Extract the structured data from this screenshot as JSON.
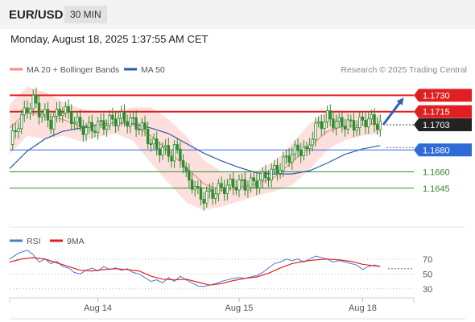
{
  "header": {
    "symbol": "EUR/USD",
    "interval": "30 MIN",
    "datetime": "Monday, August 18, 2025 1:37:55 AM CET"
  },
  "legend": {
    "bollinger_label": "MA 20 + Bollinger Bands",
    "ma50_label": "MA 50",
    "credit": "Research © 2025 Trading Central",
    "rsi_label": "RSI",
    "rsi_ma_label": "9MA"
  },
  "colors": {
    "bollinger": "#f28c8c",
    "band_fill": "#fde0de",
    "ma50": "#2f5ca8",
    "resistance": "#e02020",
    "current": "#222222",
    "support_blue": "#2f6bd6",
    "support_green": "#2e8b2e",
    "arrow": "#2f63b0",
    "candle": "#2e8b2e",
    "rsi": "#4a78d6",
    "rsi_ma": "#e02020"
  },
  "chart_data": [
    {
      "type": "candlestick",
      "title": "EUR/USD 30 MIN",
      "ylim": [
        1.1622,
        1.1745
      ],
      "x_ticks": [
        "Aug 14",
        "Aug 15",
        "Aug 18"
      ],
      "levels": [
        {
          "value": 1.173,
          "label": "1.1730",
          "kind": "resistance"
        },
        {
          "value": 1.1715,
          "label": "1.1715",
          "kind": "resistance"
        },
        {
          "value": 1.1703,
          "label": "1.1703",
          "kind": "current"
        },
        {
          "value": 1.168,
          "label": "1.1680",
          "kind": "support-blue"
        },
        {
          "value": 1.166,
          "label": "1.1660",
          "kind": "support-green"
        },
        {
          "value": 1.1645,
          "label": "1.1645",
          "kind": "support-green"
        }
      ],
      "close_path": [
        [
          0,
          1.1685
        ],
        [
          3,
          1.1705
        ],
        [
          6,
          1.1718
        ],
        [
          8,
          1.1725
        ],
        [
          10,
          1.1716
        ],
        [
          12,
          1.1711
        ],
        [
          14,
          1.1705
        ],
        [
          16,
          1.1712
        ],
        [
          18,
          1.1718
        ],
        [
          20,
          1.1712
        ],
        [
          22,
          1.1707
        ],
        [
          24,
          1.1701
        ],
        [
          26,
          1.1699
        ],
        [
          28,
          1.17
        ],
        [
          30,
          1.1702
        ],
        [
          32,
          1.1704
        ],
        [
          34,
          1.1706
        ],
        [
          36,
          1.1708
        ],
        [
          38,
          1.1709
        ],
        [
          40,
          1.1707
        ],
        [
          42,
          1.1705
        ],
        [
          44,
          1.1702
        ],
        [
          46,
          1.1697
        ],
        [
          48,
          1.1686
        ],
        [
          50,
          1.1682
        ],
        [
          52,
          1.168
        ],
        [
          54,
          1.1678
        ],
        [
          55,
          1.1674
        ],
        [
          56,
          1.168
        ],
        [
          58,
          1.1676
        ],
        [
          60,
          1.1655
        ],
        [
          62,
          1.165
        ],
        [
          64,
          1.164
        ],
        [
          66,
          1.1636
        ],
        [
          68,
          1.164
        ],
        [
          70,
          1.1642
        ],
        [
          72,
          1.1645
        ],
        [
          74,
          1.1647
        ],
        [
          76,
          1.1648
        ],
        [
          78,
          1.1649
        ],
        [
          80,
          1.1648
        ],
        [
          82,
          1.1649
        ],
        [
          84,
          1.1651
        ],
        [
          86,
          1.1654
        ],
        [
          88,
          1.1658
        ],
        [
          90,
          1.1661
        ],
        [
          92,
          1.1665
        ],
        [
          94,
          1.1672
        ],
        [
          96,
          1.1677
        ],
        [
          98,
          1.168
        ],
        [
          100,
          1.1681
        ],
        [
          101,
          1.1676
        ],
        [
          102,
          1.1688
        ],
        [
          104,
          1.17
        ],
        [
          106,
          1.1705
        ],
        [
          108,
          1.171
        ],
        [
          110,
          1.1706
        ],
        [
          112,
          1.1704
        ],
        [
          114,
          1.1704
        ],
        [
          116,
          1.1703
        ],
        [
          118,
          1.1703
        ],
        [
          120,
          1.1706
        ],
        [
          122,
          1.1708
        ],
        [
          124,
          1.1705
        ],
        [
          126,
          1.1703
        ]
      ],
      "ma20_path": [
        [
          0,
          1.17
        ],
        [
          6,
          1.1715
        ],
        [
          12,
          1.1711
        ],
        [
          18,
          1.1708
        ],
        [
          24,
          1.1702
        ],
        [
          30,
          1.1703
        ],
        [
          36,
          1.1705
        ],
        [
          42,
          1.1703
        ],
        [
          48,
          1.1693
        ],
        [
          54,
          1.1679
        ],
        [
          60,
          1.1664
        ],
        [
          66,
          1.1649
        ],
        [
          72,
          1.1643
        ],
        [
          78,
          1.1646
        ],
        [
          84,
          1.1649
        ],
        [
          90,
          1.1655
        ],
        [
          96,
          1.1669
        ],
        [
          102,
          1.1683
        ],
        [
          108,
          1.1697
        ],
        [
          114,
          1.1702
        ],
        [
          120,
          1.1703
        ],
        [
          126,
          1.1704
        ]
      ],
      "ma50_path": [
        [
          0,
          1.1663
        ],
        [
          6,
          1.1679
        ],
        [
          12,
          1.169
        ],
        [
          18,
          1.1697
        ],
        [
          24,
          1.17
        ],
        [
          30,
          1.1703
        ],
        [
          36,
          1.1705
        ],
        [
          42,
          1.1704
        ],
        [
          48,
          1.17
        ],
        [
          54,
          1.1695
        ],
        [
          60,
          1.1686
        ],
        [
          66,
          1.1677
        ],
        [
          72,
          1.167
        ],
        [
          78,
          1.1664
        ],
        [
          84,
          1.1659
        ],
        [
          90,
          1.1658
        ],
        [
          96,
          1.1658
        ],
        [
          102,
          1.1661
        ],
        [
          108,
          1.1668
        ],
        [
          114,
          1.1676
        ],
        [
          120,
          1.1681
        ],
        [
          126,
          1.1684
        ]
      ],
      "band_upper": [
        [
          0,
          1.1722
        ],
        [
          6,
          1.1738
        ],
        [
          12,
          1.1733
        ],
        [
          18,
          1.1724
        ],
        [
          24,
          1.1718
        ],
        [
          30,
          1.1715
        ],
        [
          36,
          1.1716
        ],
        [
          42,
          1.1719
        ],
        [
          48,
          1.1719
        ],
        [
          54,
          1.1708
        ],
        [
          60,
          1.1693
        ],
        [
          66,
          1.1671
        ],
        [
          72,
          1.166
        ],
        [
          78,
          1.166
        ],
        [
          84,
          1.1661
        ],
        [
          90,
          1.1669
        ],
        [
          96,
          1.1686
        ],
        [
          102,
          1.1704
        ],
        [
          108,
          1.1716
        ],
        [
          114,
          1.1716
        ],
        [
          120,
          1.1714
        ],
        [
          126,
          1.1712
        ]
      ],
      "band_lower": [
        [
          0,
          1.1676
        ],
        [
          6,
          1.1693
        ],
        [
          12,
          1.169
        ],
        [
          18,
          1.1693
        ],
        [
          24,
          1.1688
        ],
        [
          30,
          1.1692
        ],
        [
          36,
          1.1695
        ],
        [
          42,
          1.1688
        ],
        [
          48,
          1.1668
        ],
        [
          54,
          1.165
        ],
        [
          60,
          1.1632
        ],
        [
          66,
          1.1625
        ],
        [
          72,
          1.1628
        ],
        [
          78,
          1.1633
        ],
        [
          84,
          1.1638
        ],
        [
          90,
          1.1642
        ],
        [
          96,
          1.1648
        ],
        [
          102,
          1.1662
        ],
        [
          108,
          1.168
        ],
        [
          114,
          1.1689
        ],
        [
          120,
          1.1693
        ],
        [
          126,
          1.1695
        ]
      ],
      "forecast_arrow": {
        "from": [
          127,
          1.1703
        ],
        "to": [
          134,
          1.1728
        ]
      }
    },
    {
      "type": "line",
      "title": "RSI",
      "ylim": [
        20,
        85
      ],
      "y_ticks": [
        70,
        50,
        30
      ],
      "series": [
        {
          "name": "RSI",
          "points": [
            [
              0,
              70
            ],
            [
              3,
              78
            ],
            [
              6,
              82
            ],
            [
              8,
              76
            ],
            [
              10,
              66
            ],
            [
              12,
              70
            ],
            [
              14,
              64
            ],
            [
              16,
              67
            ],
            [
              18,
              60
            ],
            [
              20,
              58
            ],
            [
              22,
              52
            ],
            [
              24,
              50
            ],
            [
              26,
              55
            ],
            [
              28,
              58
            ],
            [
              30,
              54
            ],
            [
              32,
              60
            ],
            [
              34,
              56
            ],
            [
              36,
              58
            ],
            [
              38,
              55
            ],
            [
              40,
              57
            ],
            [
              42,
              52
            ],
            [
              44,
              50
            ],
            [
              46,
              45
            ],
            [
              48,
              40
            ],
            [
              50,
              42
            ],
            [
              52,
              38
            ],
            [
              54,
              45
            ],
            [
              56,
              40
            ],
            [
              58,
              47
            ],
            [
              60,
              42
            ],
            [
              62,
              38
            ],
            [
              64,
              34
            ],
            [
              66,
              33
            ],
            [
              68,
              35
            ],
            [
              70,
              37
            ],
            [
              72,
              40
            ],
            [
              74,
              42
            ],
            [
              76,
              44
            ],
            [
              78,
              45
            ],
            [
              80,
              44
            ],
            [
              82,
              46
            ],
            [
              84,
              48
            ],
            [
              86,
              52
            ],
            [
              88,
              58
            ],
            [
              90,
              64
            ],
            [
              92,
              66
            ],
            [
              94,
              70
            ],
            [
              96,
              68
            ],
            [
              98,
              70
            ],
            [
              100,
              66
            ],
            [
              102,
              70
            ],
            [
              104,
              74
            ],
            [
              106,
              72
            ],
            [
              108,
              70
            ],
            [
              110,
              66
            ],
            [
              112,
              68
            ],
            [
              114,
              66
            ],
            [
              116,
              64
            ],
            [
              118,
              62
            ],
            [
              120,
              56
            ],
            [
              122,
              60
            ],
            [
              124,
              62
            ],
            [
              126,
              60
            ]
          ]
        },
        {
          "name": "9MA",
          "points": [
            [
              0,
              66
            ],
            [
              4,
              70
            ],
            [
              8,
              72
            ],
            [
              12,
              70
            ],
            [
              16,
              65
            ],
            [
              20,
              60
            ],
            [
              24,
              55
            ],
            [
              28,
              54
            ],
            [
              32,
              56
            ],
            [
              36,
              57
            ],
            [
              40,
              56
            ],
            [
              44,
              54
            ],
            [
              48,
              47
            ],
            [
              52,
              43
            ],
            [
              56,
              42
            ],
            [
              60,
              43
            ],
            [
              64,
              39
            ],
            [
              68,
              35
            ],
            [
              72,
              37
            ],
            [
              76,
              41
            ],
            [
              80,
              44
            ],
            [
              84,
              46
            ],
            [
              88,
              51
            ],
            [
              92,
              58
            ],
            [
              96,
              64
            ],
            [
              100,
              67
            ],
            [
              104,
              69
            ],
            [
              108,
              70
            ],
            [
              112,
              69
            ],
            [
              116,
              67
            ],
            [
              120,
              63
            ],
            [
              124,
              61
            ],
            [
              126,
              60
            ]
          ]
        }
      ]
    }
  ]
}
